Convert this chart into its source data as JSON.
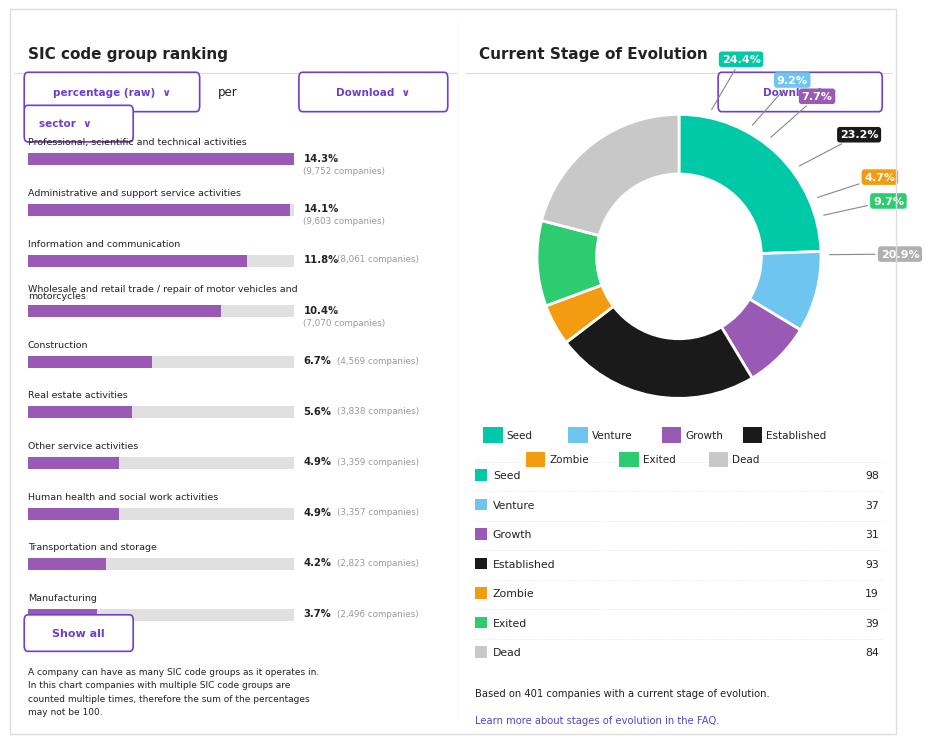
{
  "left_title": "SIC code group ranking",
  "right_title": "Current Stage of Evolution",
  "bar_categories": [
    "Professional, scientific and technical activities",
    "Administrative and support service activities",
    "Information and communication",
    "Wholesale and retail trade / repair of motor vehicles and\nmotorcycles",
    "Construction",
    "Real estate activities",
    "Other service activities",
    "Human health and social work activities",
    "Transportation and storage",
    "Manufacturing"
  ],
  "bar_values": [
    14.3,
    14.1,
    11.8,
    10.4,
    6.7,
    5.6,
    4.9,
    4.9,
    4.2,
    3.7
  ],
  "bar_companies": [
    "9,752",
    "9,603",
    "8,061",
    "7,070",
    "4,569",
    "3,838",
    "3,359",
    "3,357",
    "2,823",
    "2,496"
  ],
  "bar_color": "#9b59b6",
  "bar_bg_color": "#e0e0e0",
  "bar_max": 14.3,
  "dropdown_color": "#6c3fcf",
  "pie_labels": [
    "Seed",
    "Venture",
    "Growth",
    "Established",
    "Zombie",
    "Exited",
    "Dead"
  ],
  "pie_values": [
    24.4,
    9.2,
    7.7,
    23.2,
    4.7,
    9.7,
    20.9
  ],
  "pie_colors": [
    "#00c9a7",
    "#6ec6f0",
    "#9b59b6",
    "#1a1a1a",
    "#f39c12",
    "#2ecc71",
    "#c8c8c8"
  ],
  "pie_counts": [
    98,
    37,
    31,
    93,
    19,
    39,
    84
  ],
  "note_text": "Based on 401 companies with a current stage of evolution.",
  "link_text": "Learn more about stages of evolution in the FAQ.",
  "footnote_left": "A company can have as many SIC code groups as it operates in.\nIn this chart companies with multiple SIC code groups are\ncounted multiple times, therefore the sum of the percentages\nmay not be 100.",
  "bg_color": "#ffffff",
  "divider_color": "#dddddd",
  "text_color": "#222222",
  "gray_text_color": "#999999",
  "link_color": "#5544cc"
}
